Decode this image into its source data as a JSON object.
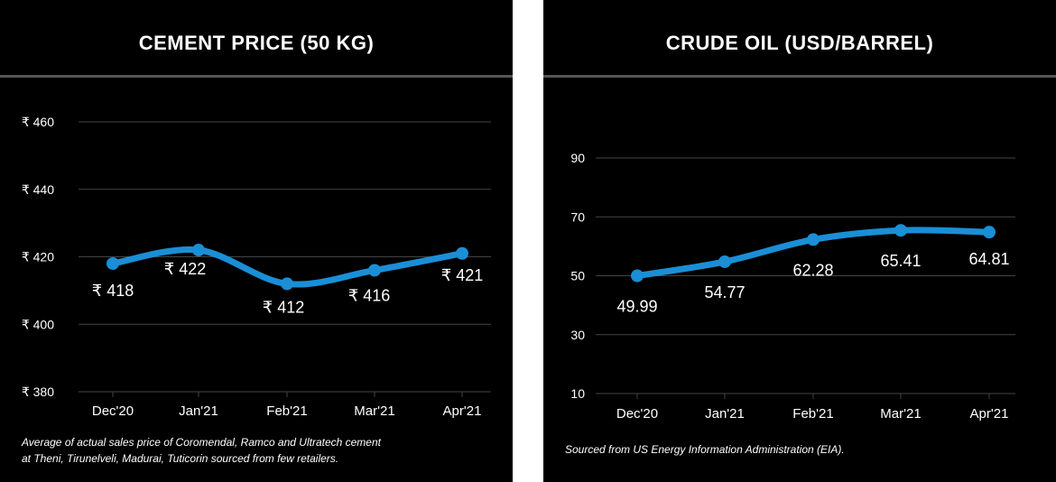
{
  "chart_data": [
    {
      "type": "line",
      "title": "CEMENT PRICE (50 KG)",
      "categories": [
        "Dec'20",
        "Jan'21",
        "Feb'21",
        "Mar'21",
        "Apr'21"
      ],
      "series": [
        {
          "values": [
            418,
            422,
            412,
            416,
            421
          ]
        }
      ],
      "data_labels": [
        "₹ 418",
        "₹ 422",
        "₹ 412",
        "₹ 416",
        "₹ 421"
      ],
      "y_ticks": [
        380,
        400,
        420,
        440,
        460
      ],
      "y_tick_labels": [
        "₹ 380",
        "₹ 400",
        "₹ 420",
        "₹ 440",
        "₹ 460"
      ],
      "ylim": [
        380,
        460
      ],
      "grid": true,
      "note_lines": [
        "Average of actual sales price of Coromendal, Ramco and Ultratech cement",
        "at Theni, Tirunelveli, Madurai, Tuticorin sourced from few retailers."
      ]
    },
    {
      "type": "line",
      "title": "CRUDE OIL (USD/BARREL)",
      "categories": [
        "Dec'20",
        "Jan'21",
        "Feb'21",
        "Mar'21",
        "Apr'21"
      ],
      "series": [
        {
          "values": [
            49.99,
            54.77,
            62.28,
            65.41,
            64.81
          ]
        }
      ],
      "data_labels": [
        "49.99",
        "54.77",
        "62.28",
        "65.41",
        "64.81"
      ],
      "y_ticks": [
        10,
        30,
        50,
        70,
        90
      ],
      "y_tick_labels": [
        "10",
        "30",
        "50",
        "70",
        "90"
      ],
      "ylim": [
        10,
        90
      ],
      "grid": true,
      "note_lines": [
        "Sourced from US Energy Information Administration (EIA)."
      ]
    }
  ],
  "colors": {
    "line": "#1a8fd6",
    "background": "#000000",
    "text": "#ffffff",
    "grid": "#444444"
  }
}
